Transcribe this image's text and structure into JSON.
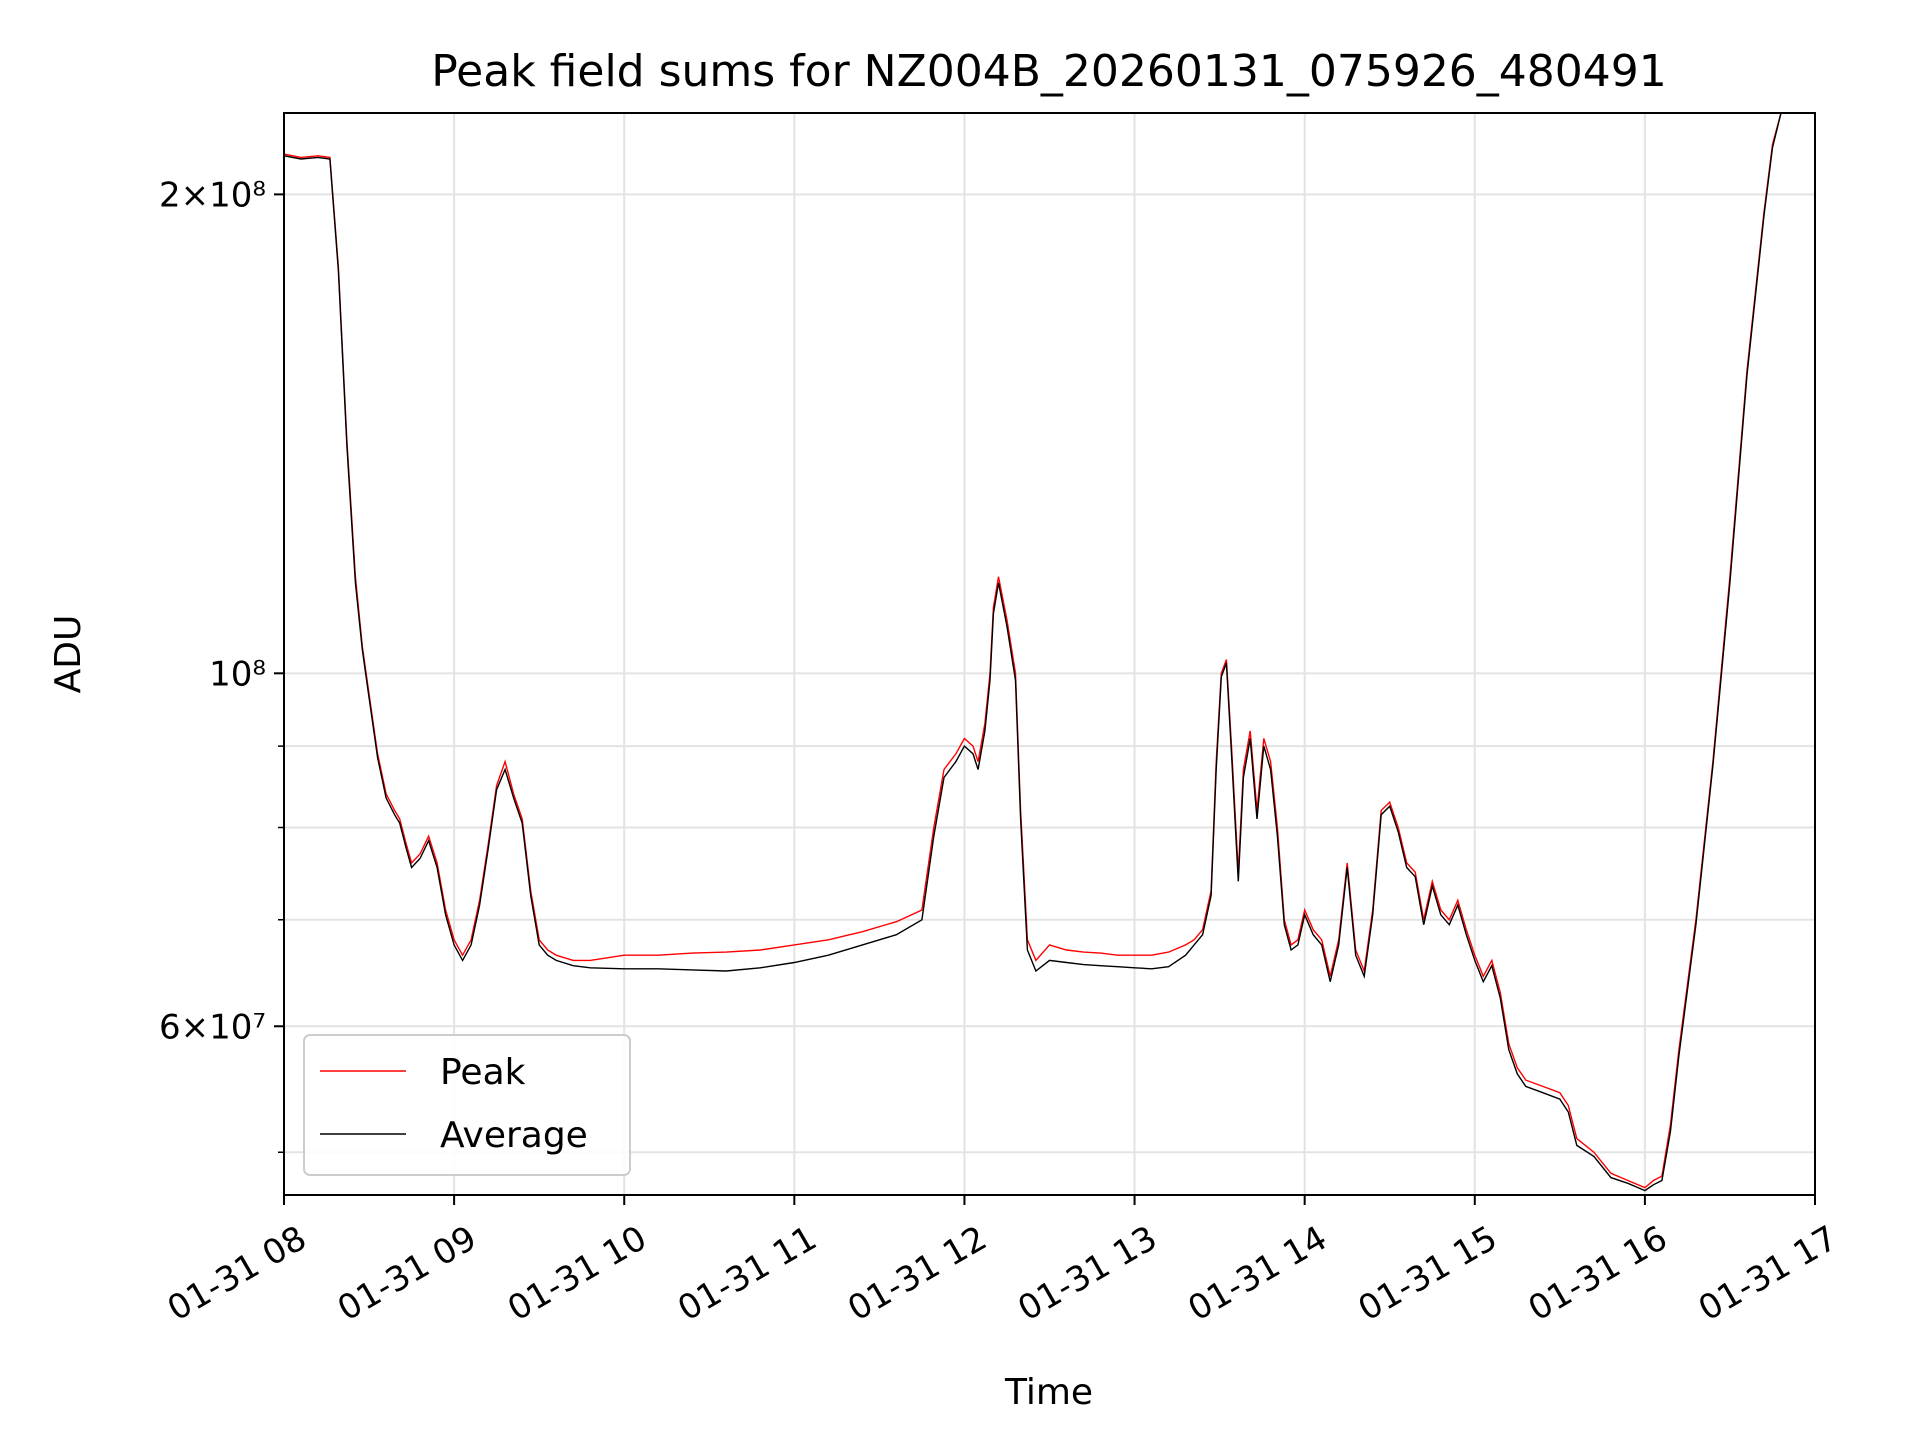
{
  "chart_data": {
    "type": "line",
    "title": "Peak field sums for NZ004B_20260131_075926_480491",
    "xlabel": "Time",
    "ylabel": "ADU",
    "x_unit": "hours of day, 2026-01-31",
    "xlim": [
      8.0,
      17.0
    ],
    "ylim": [
      47000000,
      225000000
    ],
    "yscale": "log",
    "grid": true,
    "legend_placement": "lower-left",
    "x_ticks": [
      {
        "value": 8,
        "label": "01-31 08"
      },
      {
        "value": 9,
        "label": "01-31 09"
      },
      {
        "value": 10,
        "label": "01-31 10"
      },
      {
        "value": 11,
        "label": "01-31 11"
      },
      {
        "value": 12,
        "label": "01-31 12"
      },
      {
        "value": 13,
        "label": "01-31 13"
      },
      {
        "value": 14,
        "label": "01-31 14"
      },
      {
        "value": 15,
        "label": "01-31 15"
      },
      {
        "value": 16,
        "label": "01-31 16"
      },
      {
        "value": 17,
        "label": "01-31 17"
      }
    ],
    "y_ticks_major": [
      {
        "value": 60000000,
        "label": "6×10⁷"
      },
      {
        "value": 100000000,
        "label": "10⁸"
      },
      {
        "value": 200000000,
        "label": "2×10⁸"
      }
    ],
    "y_ticks_minor": [
      50000000,
      70000000,
      80000000,
      90000000
    ],
    "series": [
      {
        "name": "Peak",
        "color": "#ff0000",
        "x": [
          8.0,
          8.1,
          8.2,
          8.27,
          8.32,
          8.37,
          8.42,
          8.46,
          8.5,
          8.55,
          8.6,
          8.65,
          8.68,
          8.72,
          8.75,
          8.8,
          8.85,
          8.9,
          8.95,
          9.0,
          9.05,
          9.1,
          9.15,
          9.2,
          9.25,
          9.3,
          9.35,
          9.4,
          9.45,
          9.5,
          9.55,
          9.6,
          9.7,
          9.8,
          10.0,
          10.2,
          10.4,
          10.6,
          10.8,
          11.0,
          11.2,
          11.4,
          11.6,
          11.75,
          11.82,
          11.88,
          11.95,
          12.0,
          12.05,
          12.08,
          12.12,
          12.15,
          12.17,
          12.2,
          12.25,
          12.3,
          12.33,
          12.37,
          12.42,
          12.5,
          12.6,
          12.7,
          12.8,
          12.9,
          13.0,
          13.1,
          13.2,
          13.3,
          13.35,
          13.4,
          13.45,
          13.48,
          13.51,
          13.54,
          13.57,
          13.61,
          13.64,
          13.68,
          13.72,
          13.76,
          13.8,
          13.84,
          13.88,
          13.92,
          13.96,
          14.0,
          14.05,
          14.1,
          14.15,
          14.2,
          14.25,
          14.3,
          14.35,
          14.4,
          14.45,
          14.5,
          14.55,
          14.6,
          14.65,
          14.7,
          14.75,
          14.8,
          14.85,
          14.9,
          14.95,
          15.0,
          15.05,
          15.1,
          15.15,
          15.2,
          15.25,
          15.3,
          15.4,
          15.5,
          15.55,
          15.6,
          15.7,
          15.8,
          15.9,
          16.0,
          16.05,
          16.1,
          16.15,
          16.2,
          16.3,
          16.4,
          16.5,
          16.6,
          16.7,
          16.75,
          16.8,
          16.85,
          16.9,
          17.0
        ],
        "values": [
          212000000,
          211000000,
          211500000,
          211000000,
          180000000,
          140000000,
          115000000,
          104000000,
          97000000,
          89000000,
          84000000,
          82000000,
          81000000,
          78000000,
          76000000,
          77000000,
          79000000,
          76000000,
          71000000,
          68000000,
          66500000,
          68000000,
          72000000,
          78000000,
          85000000,
          88000000,
          84000000,
          81000000,
          73000000,
          68000000,
          67000000,
          66500000,
          66000000,
          66000000,
          66500000,
          66500000,
          66700000,
          66800000,
          67000000,
          67500000,
          68000000,
          68800000,
          69800000,
          71000000,
          80000000,
          87000000,
          89000000,
          91000000,
          90000000,
          88000000,
          93000000,
          100000000,
          110000000,
          115000000,
          108000000,
          100000000,
          82000000,
          68000000,
          66000000,
          67500000,
          67000000,
          66800000,
          66700000,
          66500000,
          66500000,
          66500000,
          66800000,
          67500000,
          68000000,
          69000000,
          73000000,
          88000000,
          100000000,
          102000000,
          90000000,
          75000000,
          87000000,
          92000000,
          82000000,
          91000000,
          88000000,
          80000000,
          70000000,
          67500000,
          68000000,
          71000000,
          69000000,
          68000000,
          64500000,
          68000000,
          76000000,
          67000000,
          65000000,
          71000000,
          82000000,
          83000000,
          80000000,
          76000000,
          75000000,
          70000000,
          74000000,
          71000000,
          70000000,
          72000000,
          69000000,
          66500000,
          64500000,
          66000000,
          63000000,
          58500000,
          56500000,
          55500000,
          55000000,
          54500000,
          53500000,
          51000000,
          50000000,
          48500000,
          48000000,
          47500000,
          48000000,
          48300000,
          52000000,
          58000000,
          70000000,
          88000000,
          115000000,
          155000000,
          195000000,
          215000000,
          225000000,
          225000000,
          225000000,
          225000000
        ]
      },
      {
        "name": "Average",
        "color": "#000000",
        "x": [
          8.0,
          8.1,
          8.2,
          8.27,
          8.32,
          8.37,
          8.42,
          8.46,
          8.5,
          8.55,
          8.6,
          8.65,
          8.68,
          8.72,
          8.75,
          8.8,
          8.85,
          8.9,
          8.95,
          9.0,
          9.05,
          9.1,
          9.15,
          9.2,
          9.25,
          9.3,
          9.35,
          9.4,
          9.45,
          9.5,
          9.55,
          9.6,
          9.7,
          9.8,
          10.0,
          10.2,
          10.4,
          10.6,
          10.8,
          11.0,
          11.2,
          11.4,
          11.6,
          11.75,
          11.82,
          11.88,
          11.95,
          12.0,
          12.05,
          12.08,
          12.12,
          12.15,
          12.17,
          12.2,
          12.25,
          12.3,
          12.33,
          12.37,
          12.42,
          12.5,
          12.6,
          12.7,
          12.8,
          12.9,
          13.0,
          13.1,
          13.2,
          13.3,
          13.35,
          13.4,
          13.45,
          13.48,
          13.51,
          13.54,
          13.57,
          13.61,
          13.64,
          13.68,
          13.72,
          13.76,
          13.8,
          13.84,
          13.88,
          13.92,
          13.96,
          14.0,
          14.05,
          14.1,
          14.15,
          14.2,
          14.25,
          14.3,
          14.35,
          14.4,
          14.45,
          14.5,
          14.55,
          14.6,
          14.65,
          14.7,
          14.75,
          14.8,
          14.85,
          14.9,
          14.95,
          15.0,
          15.05,
          15.1,
          15.15,
          15.2,
          15.25,
          15.3,
          15.4,
          15.5,
          15.55,
          15.6,
          15.7,
          15.8,
          15.9,
          16.0,
          16.05,
          16.1,
          16.15,
          16.2,
          16.3,
          16.4,
          16.5,
          16.6,
          16.7,
          16.75,
          16.8,
          16.85,
          16.9,
          17.0
        ],
        "values": [
          211500000,
          210500000,
          211000000,
          210500000,
          179000000,
          139000000,
          114000000,
          103500000,
          96500000,
          88500000,
          83500000,
          81500000,
          80500000,
          77500000,
          75500000,
          76500000,
          78500000,
          75500000,
          70500000,
          67500000,
          66000000,
          67500000,
          71500000,
          77500000,
          84500000,
          87000000,
          83500000,
          80500000,
          72500000,
          67500000,
          66500000,
          66000000,
          65500000,
          65300000,
          65200000,
          65200000,
          65100000,
          65000000,
          65300000,
          65800000,
          66500000,
          67500000,
          68500000,
          70000000,
          79000000,
          86000000,
          88000000,
          90000000,
          89000000,
          87000000,
          92000000,
          99000000,
          109000000,
          114000000,
          107000000,
          99000000,
          81000000,
          67000000,
          65000000,
          66000000,
          65800000,
          65600000,
          65500000,
          65400000,
          65300000,
          65200000,
          65400000,
          66500000,
          67500000,
          68500000,
          72500000,
          87000000,
          99500000,
          101500000,
          89000000,
          74000000,
          86000000,
          91000000,
          81000000,
          90000000,
          87000000,
          79000000,
          69500000,
          67000000,
          67500000,
          70500000,
          68500000,
          67500000,
          64000000,
          67500000,
          75500000,
          66500000,
          64500000,
          70500000,
          81500000,
          82500000,
          79500000,
          75500000,
          74500000,
          69500000,
          73500000,
          70500000,
          69500000,
          71500000,
          68500000,
          66000000,
          64000000,
          65500000,
          62500000,
          58000000,
          56000000,
          55000000,
          54500000,
          54000000,
          53000000,
          50500000,
          49700000,
          48200000,
          47800000,
          47300000,
          47700000,
          48000000,
          51500000,
          57500000,
          69500000,
          87500000,
          114000000,
          154000000,
          194000000,
          214000000,
          225000000,
          225000000,
          225000000,
          225000000
        ]
      }
    ]
  }
}
